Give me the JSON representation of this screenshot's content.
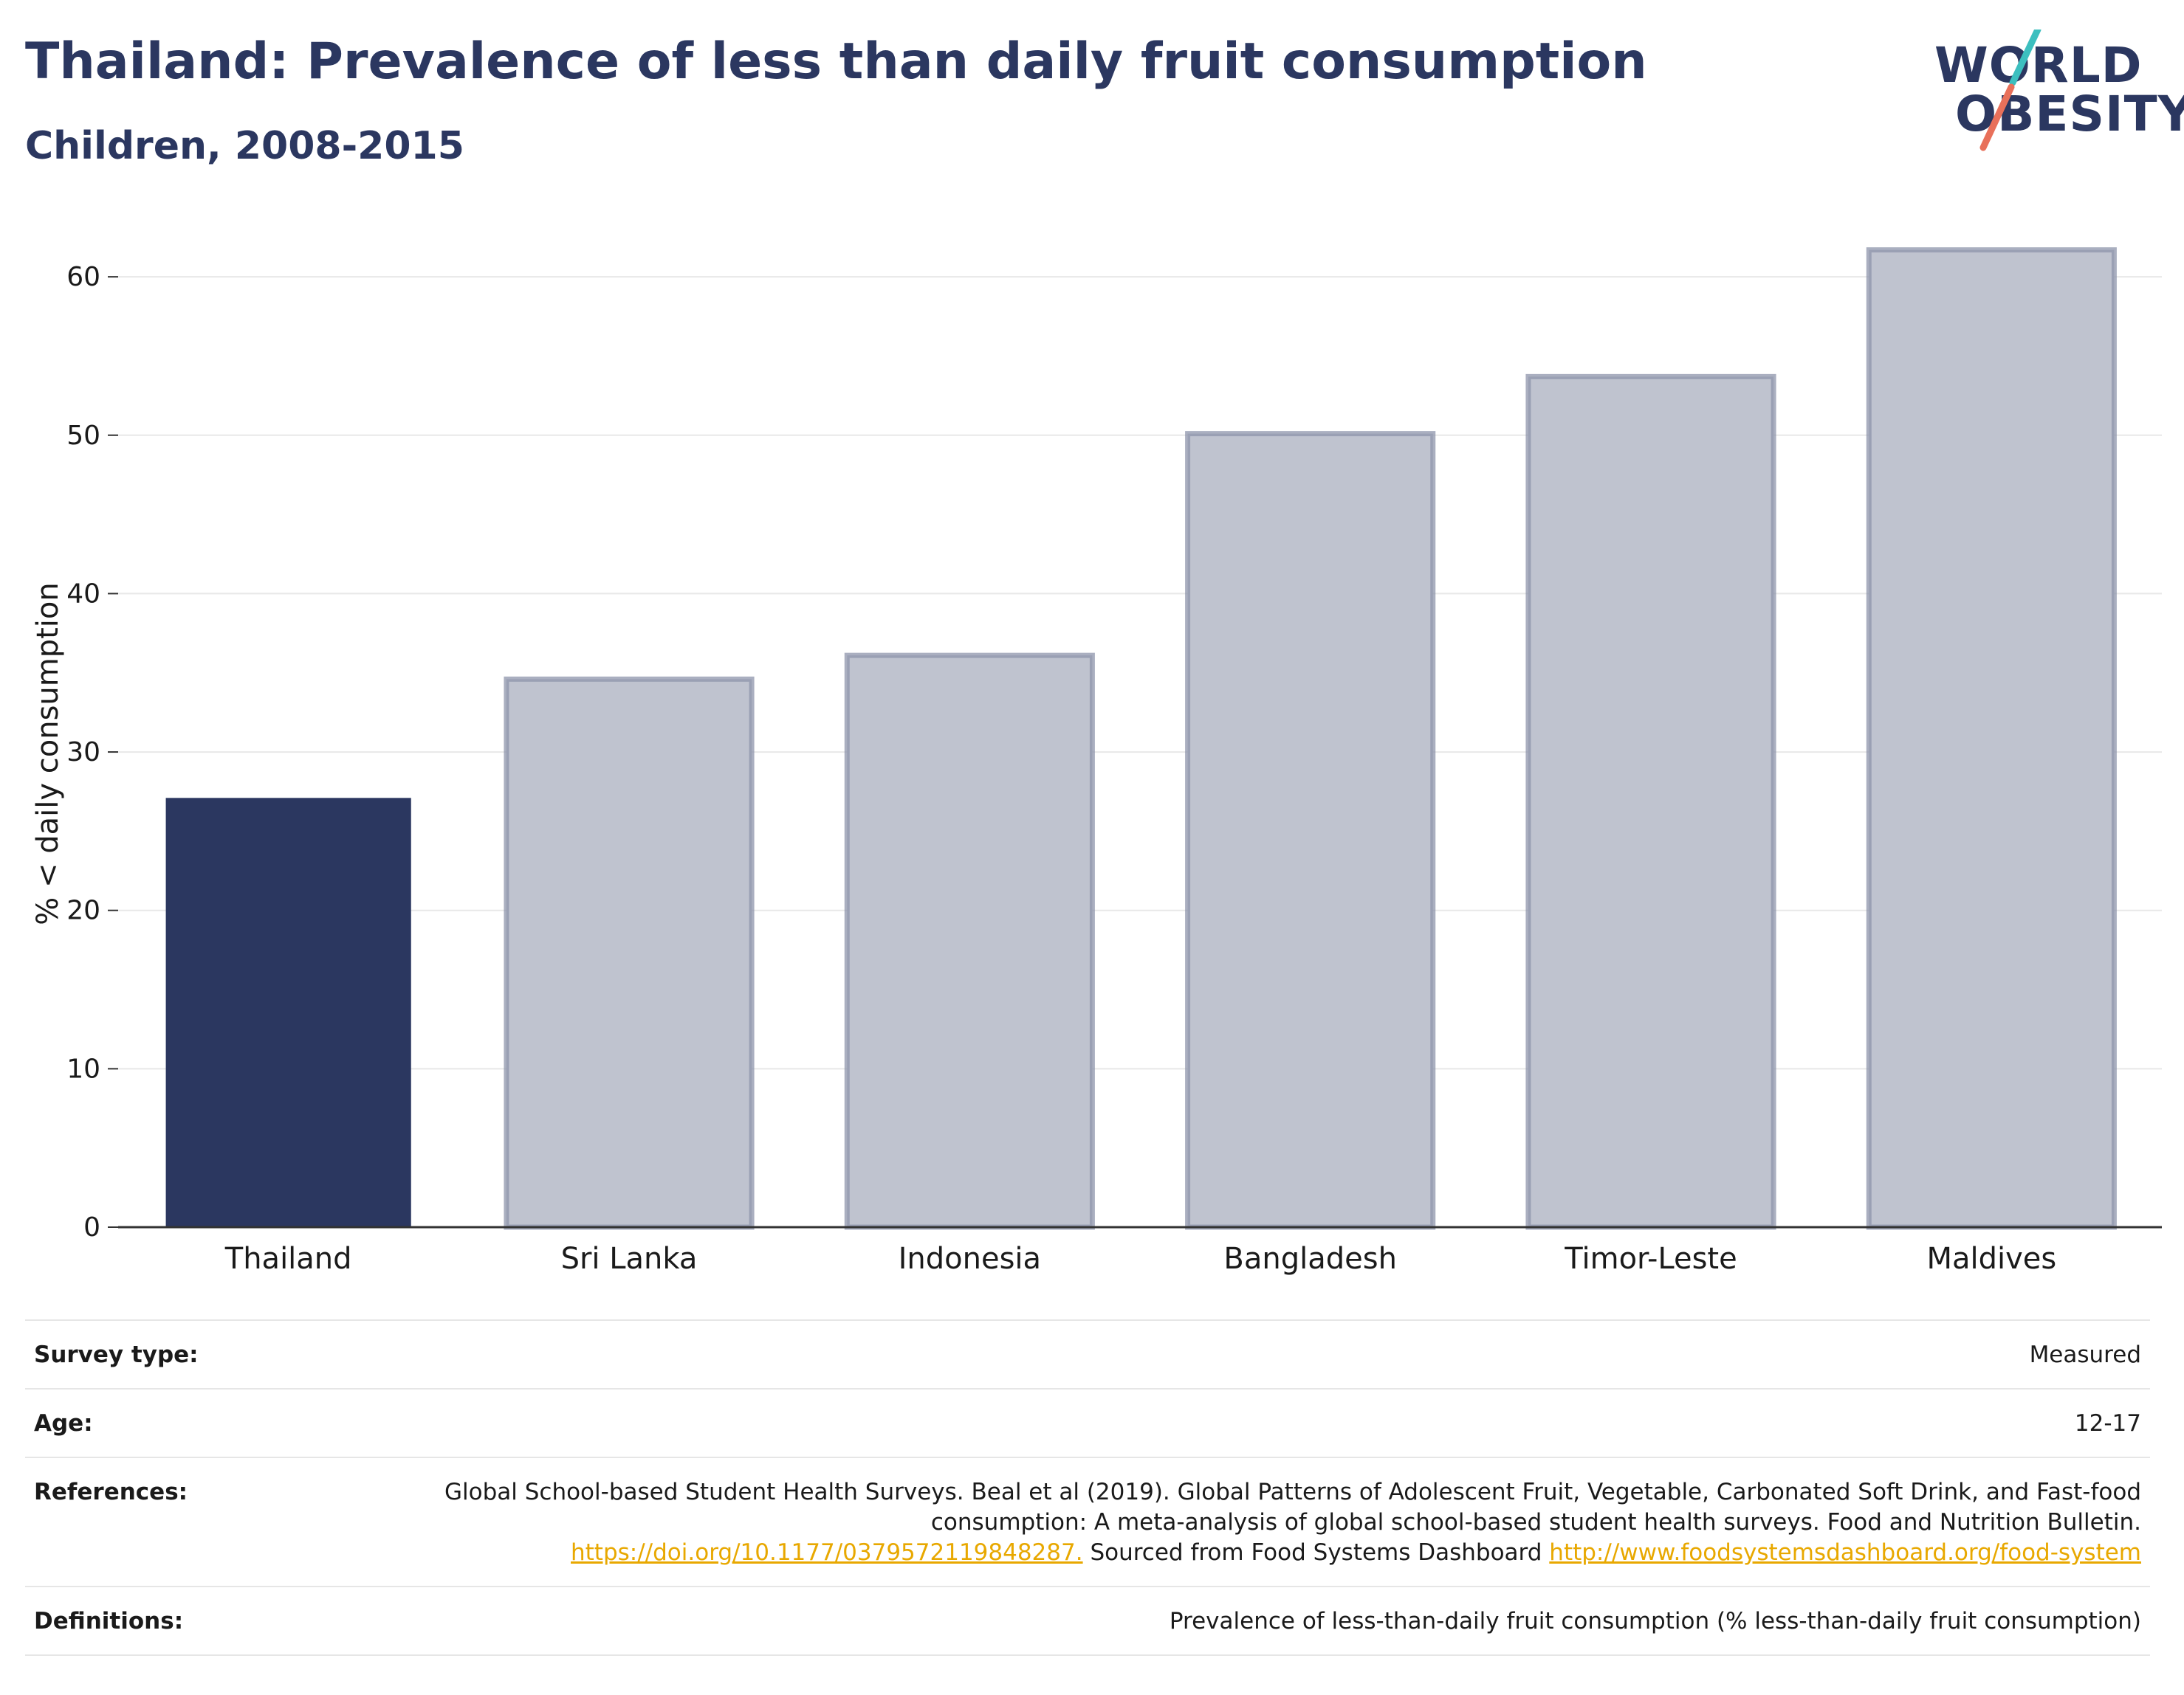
{
  "header": {
    "title": "Thailand: Prevalence of less than daily fruit consumption",
    "subtitle": "Children, 2008-2015"
  },
  "logo": {
    "line1": "WORLD",
    "line2": "OBESITY",
    "accent_teal": "#3cbfbf",
    "accent_coral": "#e8705a"
  },
  "colors": {
    "highlight_bar": "#2b3760",
    "other_bar_fill": "#bfc3cf",
    "other_bar_stroke": "#8d94ab",
    "gridline": "#e8e8e8",
    "text_dark": "#2b3760",
    "link": "#e8a800"
  },
  "chart_data": {
    "type": "bar",
    "categories": [
      "Thailand",
      "Sri Lanka",
      "Indonesia",
      "Bangladesh",
      "Timor-Leste",
      "Maldives"
    ],
    "values": [
      27.1,
      34.6,
      36.1,
      50.1,
      53.7,
      61.7
    ],
    "highlight": "Thailand",
    "xlabel": "",
    "ylabel": "% < daily consumption",
    "ylim": [
      0,
      63.5
    ],
    "yticks": [
      0,
      10,
      20,
      30,
      40,
      50,
      60
    ],
    "grid": true
  },
  "meta": {
    "survey_type_label": "Survey type:",
    "survey_type_value": "Measured",
    "age_label": "Age:",
    "age_value": "12-17",
    "references_label": "References:",
    "references_text_1": "Global School-based Student Health Surveys. Beal et al (2019). Global Patterns of Adolescent Fruit, Vegetable, Carbonated Soft Drink, and Fast-food consumption: A meta-analysis of global school-based student health surveys. Food and Nutrition Bulletin.",
    "references_link_1": "https://doi.org/10.1177/0379572119848287.",
    "references_text_2": "Sourced from Food Systems Dashboard",
    "references_link_2": "http://www.foodsystemsdashboard.org/food-system",
    "definitions_label": "Definitions:",
    "definitions_value": "Prevalence of less-than-daily fruit consumption (% less-than-daily fruit consumption)"
  }
}
